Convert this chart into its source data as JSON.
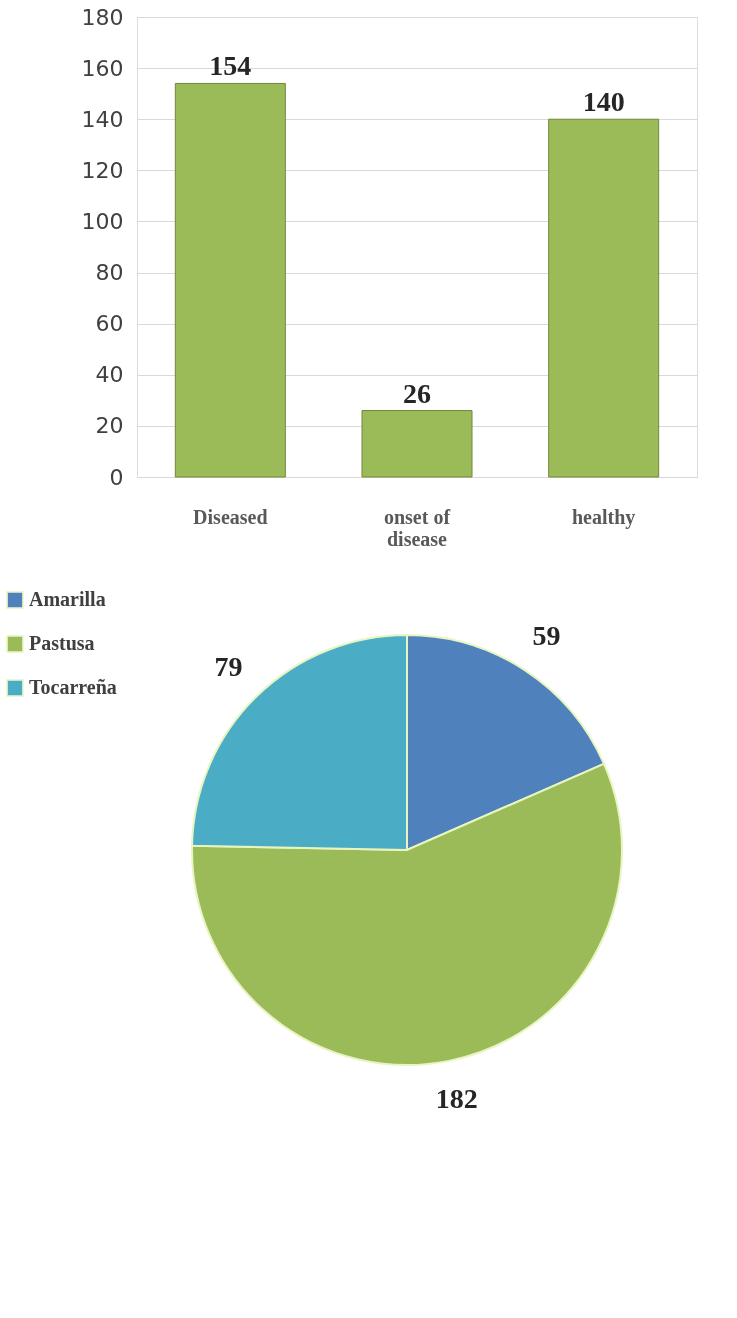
{
  "chart_data": [
    {
      "type": "bar",
      "categories": [
        "Diseased",
        "onset of disease",
        "healthy"
      ],
      "values": [
        154,
        26,
        140
      ],
      "color": "#9bbb59",
      "ylim": [
        0,
        180
      ],
      "yticks": [
        0,
        20,
        40,
        60,
        80,
        100,
        120,
        140,
        160,
        180
      ],
      "grid": "y",
      "data_labels": true
    },
    {
      "type": "pie",
      "categories": [
        "Amarilla",
        "Pastusa",
        "Tocarreña"
      ],
      "values": [
        59,
        182,
        79
      ],
      "colors": [
        "#4f81bd",
        "#9bbb59",
        "#4bacc6"
      ],
      "legend": "left",
      "data_labels": true
    }
  ]
}
